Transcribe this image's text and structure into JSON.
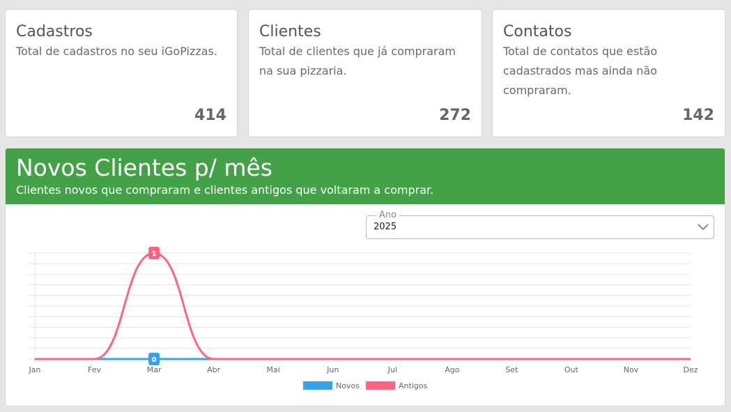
{
  "cards": [
    {
      "title": "Cadastros",
      "description": "Total de cadastros no seu iGoPizzas.",
      "value": "414"
    },
    {
      "title": "Clientes",
      "description": "Total de clientes que já compraram na sua pizzaria.",
      "value": "272"
    },
    {
      "title": "Contatos",
      "description": "Total de contatos que estão cadastrados mas ainda não compraram.",
      "value": "142"
    }
  ],
  "chart_panel": {
    "title": "Novos Clientes p/ mês",
    "subtitle": "Clientes novos que compraram e clientes antigos que voltaram a comprar.",
    "header_color": "#43a247"
  },
  "year_select": {
    "label": "Ano",
    "value": "2025"
  },
  "chart_data": {
    "type": "line",
    "categories": [
      "Jan",
      "Fev",
      "Mar",
      "Abr",
      "Mai",
      "Jun",
      "Jul",
      "Ago",
      "Set",
      "Out",
      "Nov",
      "Dez"
    ],
    "series": [
      {
        "name": "Novos",
        "color": "#36a2eb",
        "values": [
          0,
          0,
          0,
          0,
          0,
          0,
          0,
          0,
          0,
          0,
          0,
          0
        ]
      },
      {
        "name": "Antigos",
        "color": "#ff6384",
        "values": [
          0,
          0,
          1,
          0,
          0,
          0,
          0,
          0,
          0,
          0,
          0,
          0
        ]
      }
    ],
    "ylim": [
      0,
      1
    ],
    "grid": true,
    "legend": "bottom"
  }
}
